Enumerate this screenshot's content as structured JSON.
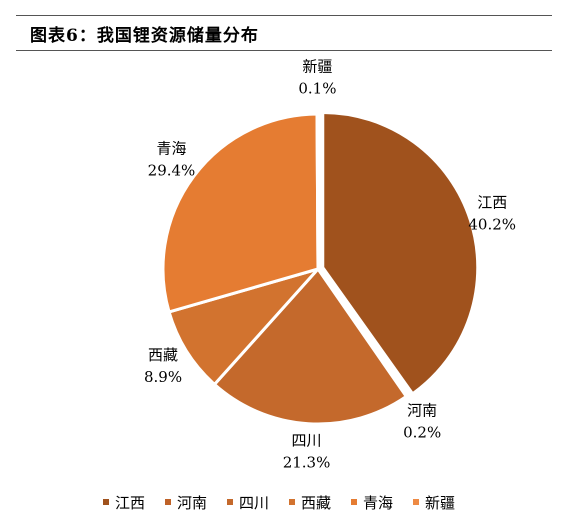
{
  "header": {
    "title": "图表6：我国锂资源储量分布"
  },
  "chart_data": {
    "type": "pie",
    "title": "",
    "start": "top",
    "direction": "clockwise",
    "legend_position": "bottom",
    "slices": [
      {
        "name": "江西",
        "value": 40.2,
        "label": "40.2%",
        "color": "#A0521D"
      },
      {
        "name": "河南",
        "value": 0.2,
        "label": "0.2%",
        "color": "#BF6228"
      },
      {
        "name": "四川",
        "value": 21.3,
        "label": "21.3%",
        "color": "#C4692C"
      },
      {
        "name": "西藏",
        "value": 8.9,
        "label": "8.9%",
        "color": "#D2732F"
      },
      {
        "name": "青海",
        "value": 29.4,
        "label": "29.4%",
        "color": "#E57C32"
      },
      {
        "name": "新疆",
        "value": 0.1,
        "label": "0.1%",
        "color": "#EE8A44"
      }
    ]
  }
}
